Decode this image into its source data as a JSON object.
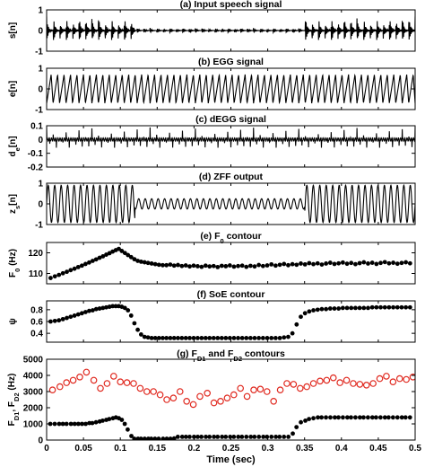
{
  "chart_data": [
    {
      "id": "speech",
      "type": "line",
      "title": "(a) Input speech signal",
      "ylabel": "s[n]",
      "ylim": [
        -1,
        1
      ],
      "yticks": [
        -1,
        0,
        1
      ],
      "xlim": [
        0,
        0.5
      ],
      "waveform": {
        "kind": "speech",
        "voiced_amplitude": 0.75,
        "weak_amplitude": 0.15,
        "weak_interval": [
          0.12,
          0.35
        ]
      }
    },
    {
      "id": "egg",
      "type": "line",
      "title": "(b) EGG signal",
      "ylabel": "e[n]",
      "ylim": [
        -1,
        1
      ],
      "yticks": [
        -1,
        0,
        1
      ],
      "xlim": [
        0,
        0.5
      ],
      "waveform": {
        "kind": "sawtooth",
        "amplitude": 0.7
      }
    },
    {
      "id": "degg",
      "type": "line",
      "title": "(c) dEGG signal",
      "ylabel": "d",
      "ylabel_sub": "e",
      "ylabel_tail": "[n]",
      "ylim": [
        -0.2,
        0.1
      ],
      "yticks": [
        -0.2,
        -0.1,
        0,
        0.1
      ],
      "xlim": [
        0,
        0.5
      ],
      "waveform": {
        "kind": "spikes",
        "positive_peak": 0.09,
        "negative_peak": -0.06
      }
    },
    {
      "id": "zff",
      "type": "line",
      "title": "(d) ZFF output",
      "ylabel": "z",
      "ylabel_sub": "s",
      "ylabel_tail": "[n]",
      "ylim": [
        -1,
        1
      ],
      "yticks": [
        -1,
        0,
        1
      ],
      "xlim": [
        0,
        0.5
      ],
      "waveform": {
        "kind": "sine",
        "voiced_amplitude": 0.9,
        "weak_amplitude": 0.25,
        "weak_interval": [
          0.12,
          0.35
        ]
      }
    },
    {
      "id": "f0",
      "type": "scatter",
      "title": "(e) F",
      "title_sub": "0",
      "title_tail": " contour",
      "ylabel": "F",
      "ylabel_sub": "0",
      "ylabel_tail": " (Hz)",
      "ylim": [
        105,
        125
      ],
      "yticks": [
        110,
        120
      ],
      "xlim": [
        0,
        0.5
      ],
      "series": [
        {
          "color": "#000000",
          "marker": "filled",
          "x": [
            0.0054,
            0.0112,
            0.0167,
            0.0221,
            0.0274,
            0.0326,
            0.0378,
            0.0429,
            0.0479,
            0.0528,
            0.0577,
            0.0625,
            0.0672,
            0.0718,
            0.0764,
            0.0809,
            0.0853,
            0.0896,
            0.0938,
            0.0979,
            0.102,
            0.1062,
            0.1104,
            0.1147,
            0.1191,
            0.1236,
            0.1282,
            0.1329,
            0.1376,
            0.1425,
            0.1474,
            0.1524,
            0.1575,
            0.1626,
            0.1678,
            0.173,
            0.1782,
            0.1835,
            0.1888,
            0.1941,
            0.1995,
            0.2049,
            0.2103,
            0.2157,
            0.2211,
            0.2266,
            0.2321,
            0.2376,
            0.2431,
            0.2486,
            0.2542,
            0.2598,
            0.2654,
            0.271,
            0.2766,
            0.2822,
            0.2879,
            0.2936,
            0.2993,
            0.305,
            0.3107,
            0.3164,
            0.3221,
            0.3278,
            0.3335,
            0.3392,
            0.3449,
            0.3506,
            0.3563,
            0.362,
            0.3677,
            0.3734,
            0.3791,
            0.3848,
            0.3905,
            0.3962,
            0.4019,
            0.4076,
            0.4133,
            0.419,
            0.4247,
            0.4304,
            0.4361,
            0.4418,
            0.4475,
            0.4532,
            0.4589,
            0.4646,
            0.4703,
            0.476,
            0.4817,
            0.4874,
            0.4931
          ],
          "y": [
            107.8,
            108.6,
            109.3,
            110.1,
            110.8,
            111.6,
            112.3,
            113.1,
            113.8,
            114.6,
            115.3,
            116.1,
            116.8,
            117.6,
            118.3,
            119.1,
            119.8,
            120.6,
            121.3,
            121.9,
            120.9,
            119.9,
            118.9,
            117.9,
            116.9,
            116.1,
            115.7,
            115.4,
            115.1,
            114.8,
            114.5,
            114.2,
            114.0,
            114.0,
            114.3,
            113.8,
            114.1,
            113.6,
            113.9,
            113.4,
            113.8,
            113.5,
            113.2,
            113.8,
            113.4,
            113.6,
            113.1,
            113.7,
            113.5,
            113.9,
            113.3,
            113.6,
            113.8,
            113.2,
            113.7,
            113.4,
            114.1,
            113.6,
            113.9,
            114.4,
            113.8,
            114.2,
            114.6,
            114.0,
            114.5,
            114.2,
            114.8,
            114.4,
            115.0,
            114.5,
            114.9,
            114.3,
            114.8,
            115.2,
            114.6,
            114.9,
            115.3,
            114.7,
            115.1,
            114.5,
            115.0,
            115.4,
            114.8,
            115.2,
            114.6,
            115.1,
            115.5,
            114.9,
            115.2,
            114.7,
            115.1,
            115.4,
            114.9
          ]
        }
      ]
    },
    {
      "id": "soe",
      "type": "scatter",
      "title": "(f) SoE contour",
      "ylabel": "ψ",
      "ylim": [
        0.25,
        0.95
      ],
      "yticks": [
        0.4,
        0.6,
        0.8
      ],
      "xlim": [
        0,
        0.5
      ],
      "series": [
        {
          "color": "#000000",
          "marker": "filled",
          "x": [
            0.0054,
            0.0112,
            0.0167,
            0.0221,
            0.0274,
            0.0326,
            0.0378,
            0.0429,
            0.0479,
            0.0528,
            0.0577,
            0.0625,
            0.0672,
            0.0718,
            0.0764,
            0.0809,
            0.0853,
            0.0896,
            0.0938,
            0.0979,
            0.102,
            0.1062,
            0.1104,
            0.1147,
            0.1191,
            0.1236,
            0.1282,
            0.1329,
            0.1376,
            0.1425,
            0.1474,
            0.1524,
            0.1575,
            0.1626,
            0.1678,
            0.173,
            0.1782,
            0.1835,
            0.1888,
            0.1941,
            0.1995,
            0.2049,
            0.2103,
            0.2157,
            0.2211,
            0.2266,
            0.2321,
            0.2376,
            0.2431,
            0.2486,
            0.2542,
            0.2598,
            0.2654,
            0.271,
            0.2766,
            0.2822,
            0.2879,
            0.2936,
            0.2993,
            0.305,
            0.3107,
            0.3164,
            0.3221,
            0.3278,
            0.3335,
            0.3392,
            0.3449,
            0.3506,
            0.3563,
            0.362,
            0.3677,
            0.3734,
            0.3791,
            0.3848,
            0.3905,
            0.3962,
            0.4019,
            0.4076,
            0.4133,
            0.419,
            0.4247,
            0.4304,
            0.4361,
            0.4418,
            0.4475,
            0.4532,
            0.4589,
            0.4646,
            0.4703,
            0.476,
            0.4817,
            0.4874,
            0.4931
          ],
          "y": [
            0.6,
            0.61,
            0.62,
            0.64,
            0.66,
            0.68,
            0.7,
            0.72,
            0.74,
            0.76,
            0.78,
            0.79,
            0.81,
            0.82,
            0.83,
            0.84,
            0.85,
            0.86,
            0.86,
            0.86,
            0.85,
            0.83,
            0.79,
            0.7,
            0.57,
            0.46,
            0.38,
            0.34,
            0.33,
            0.32,
            0.32,
            0.32,
            0.32,
            0.32,
            0.32,
            0.32,
            0.32,
            0.32,
            0.32,
            0.32,
            0.32,
            0.32,
            0.32,
            0.32,
            0.32,
            0.32,
            0.32,
            0.32,
            0.32,
            0.32,
            0.32,
            0.32,
            0.32,
            0.32,
            0.32,
            0.32,
            0.32,
            0.32,
            0.32,
            0.32,
            0.32,
            0.32,
            0.33,
            0.34,
            0.4,
            0.55,
            0.68,
            0.74,
            0.77,
            0.79,
            0.8,
            0.81,
            0.81,
            0.82,
            0.82,
            0.82,
            0.83,
            0.83,
            0.83,
            0.83,
            0.83,
            0.83,
            0.83,
            0.84,
            0.84,
            0.84,
            0.84,
            0.84,
            0.84,
            0.84,
            0.84,
            0.84,
            0.84
          ]
        }
      ]
    },
    {
      "id": "fd",
      "type": "scatter",
      "title": "(g) F",
      "title_sub": "D1",
      "title_mid": " and F",
      "title_sub2": "D2",
      "title_tail": " contours",
      "ylabel": "F",
      "ylabel_sub": "D1",
      "ylabel_mid": ", F",
      "ylabel_sub2": "D2",
      "ylabel_tail": " (Hz)",
      "ylim": [
        0,
        5000
      ],
      "yticks": [
        0,
        1000,
        2000,
        3000,
        4000,
        5000
      ],
      "xlim": [
        0,
        0.5
      ],
      "xticks": [
        0,
        0.05,
        0.1,
        0.15,
        0.2,
        0.25,
        0.3,
        0.35,
        0.4,
        0.45,
        0.5
      ],
      "xticklabels": [
        "0",
        "0.05",
        "0.1",
        "0.15",
        "0.2",
        "0.25",
        "0.3",
        "0.35",
        "0.4",
        "0.45",
        "0.5"
      ],
      "xlabel": "Time (sec)",
      "series": [
        {
          "color": "#e0281e",
          "marker": "open",
          "x": [
            0.008,
            0.018,
            0.027,
            0.036,
            0.045,
            0.054,
            0.064,
            0.073,
            0.082,
            0.091,
            0.1,
            0.109,
            0.118,
            0.127,
            0.136,
            0.145,
            0.154,
            0.163,
            0.172,
            0.181,
            0.19,
            0.199,
            0.208,
            0.218,
            0.227,
            0.236,
            0.245,
            0.254,
            0.263,
            0.272,
            0.281,
            0.29,
            0.299,
            0.308,
            0.317,
            0.326,
            0.335,
            0.344,
            0.353,
            0.362,
            0.371,
            0.38,
            0.389,
            0.398,
            0.407,
            0.416,
            0.425,
            0.434,
            0.443,
            0.452,
            0.461,
            0.47,
            0.479,
            0.488,
            0.497
          ],
          "y": [
            3100,
            3300,
            3550,
            3700,
            3900,
            4200,
            3700,
            3200,
            3500,
            3950,
            3600,
            3550,
            3500,
            3200,
            3000,
            3000,
            2800,
            2500,
            2600,
            3000,
            2400,
            2200,
            2700,
            2900,
            2300,
            2400,
            2600,
            2800,
            3200,
            2700,
            3100,
            3150,
            3000,
            2400,
            3100,
            3500,
            3450,
            3200,
            3300,
            3500,
            3650,
            3700,
            3850,
            3550,
            3700,
            3500,
            3450,
            3400,
            3500,
            3800,
            3950,
            3600,
            3800,
            3750,
            3900
          ]
        },
        {
          "color": "#000000",
          "marker": "filled",
          "x": [
            0.005,
            0.011,
            0.017,
            0.022,
            0.027,
            0.033,
            0.038,
            0.043,
            0.048,
            0.053,
            0.058,
            0.062,
            0.067,
            0.072,
            0.076,
            0.081,
            0.085,
            0.09,
            0.094,
            0.098,
            0.102,
            0.106,
            0.11,
            0.115,
            0.119,
            0.124,
            0.128,
            0.133,
            0.138,
            0.142,
            0.147,
            0.152,
            0.158,
            0.163,
            0.168,
            0.173,
            0.178,
            0.184,
            0.189,
            0.194,
            0.2,
            0.205,
            0.21,
            0.216,
            0.221,
            0.227,
            0.232,
            0.238,
            0.243,
            0.249,
            0.254,
            0.26,
            0.265,
            0.271,
            0.277,
            0.282,
            0.288,
            0.294,
            0.299,
            0.305,
            0.311,
            0.316,
            0.322,
            0.328,
            0.334,
            0.339,
            0.345,
            0.351,
            0.356,
            0.362,
            0.368,
            0.373,
            0.379,
            0.385,
            0.391,
            0.396,
            0.402,
            0.408,
            0.413,
            0.419,
            0.425,
            0.43,
            0.436,
            0.442,
            0.447,
            0.453,
            0.459,
            0.464,
            0.47,
            0.476,
            0.482,
            0.487,
            0.493
          ],
          "y": [
            1000,
            1000,
            1000,
            1000,
            1000,
            1000,
            1000,
            1000,
            1000,
            1000,
            1050,
            1050,
            1100,
            1150,
            1200,
            1250,
            1300,
            1350,
            1400,
            1350,
            1250,
            1000,
            650,
            250,
            80,
            80,
            80,
            80,
            80,
            80,
            80,
            80,
            80,
            80,
            80,
            100,
            200,
            200,
            200,
            200,
            200,
            200,
            200,
            200,
            200,
            200,
            200,
            200,
            200,
            200,
            200,
            200,
            200,
            200,
            200,
            200,
            200,
            200,
            200,
            200,
            200,
            200,
            200,
            200,
            400,
            800,
            1100,
            1200,
            1300,
            1350,
            1400,
            1400,
            1400,
            1400,
            1400,
            1400,
            1400,
            1400,
            1400,
            1400,
            1400,
            1400,
            1400,
            1400,
            1400,
            1400,
            1400,
            1400,
            1400,
            1400,
            1400,
            1400,
            1400
          ]
        }
      ]
    }
  ]
}
